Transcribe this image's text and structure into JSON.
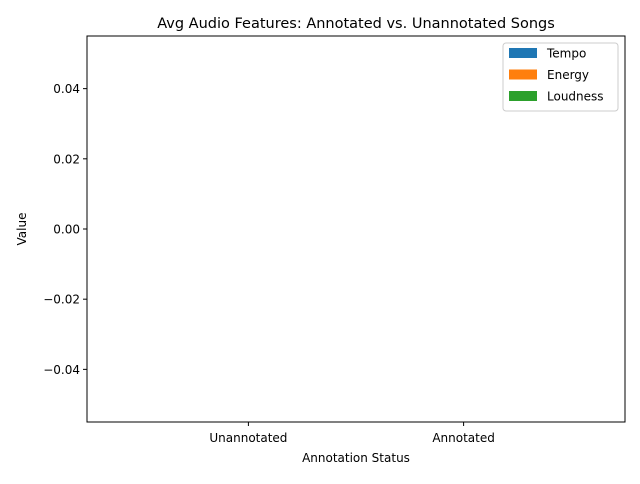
{
  "chart_data": {
    "type": "bar",
    "title": "Avg Audio Features: Annotated vs. Unannotated Songs",
    "xlabel": "Annotation Status",
    "ylabel": "Value",
    "categories": [
      "Unannotated",
      "Annotated"
    ],
    "ylim": [
      -0.055,
      0.055
    ],
    "yticks": [
      0.04,
      0.02,
      0.0,
      -0.02,
      -0.04
    ],
    "ytick_labels": [
      "0.04",
      "0.02",
      "0.00",
      "−0.02",
      "−0.04"
    ],
    "series": [
      {
        "name": "Tempo",
        "color": "#1f77b4",
        "values": [
          0,
          0
        ]
      },
      {
        "name": "Energy",
        "color": "#ff7f0e",
        "values": [
          0,
          0
        ]
      },
      {
        "name": "Loudness",
        "color": "#2ca02c",
        "values": [
          0,
          0
        ]
      }
    ],
    "grid": false,
    "legend_position": "top-right"
  }
}
